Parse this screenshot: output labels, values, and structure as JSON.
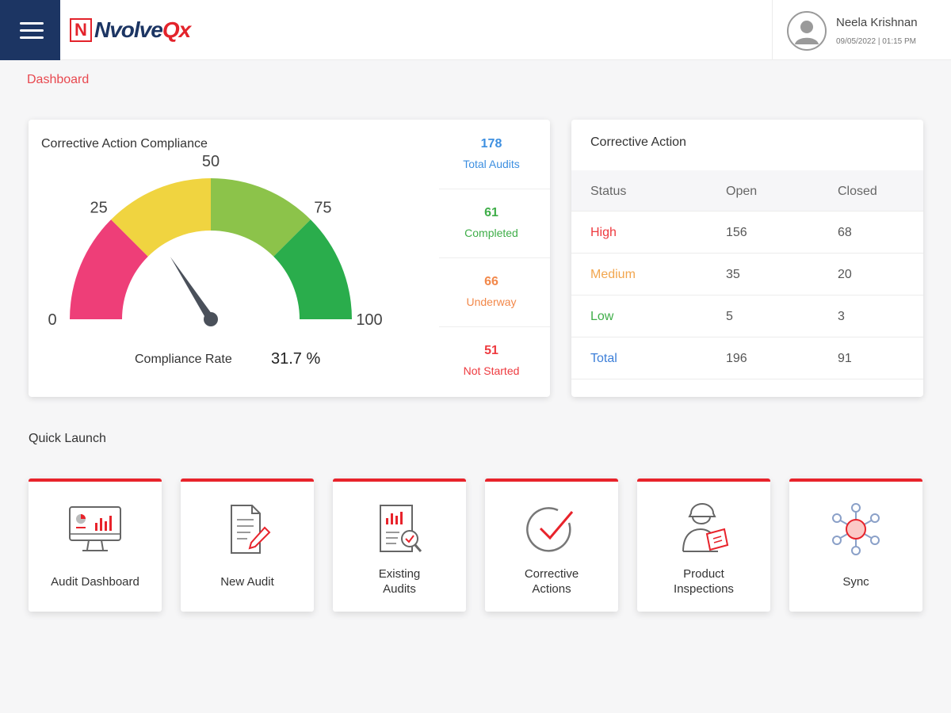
{
  "header": {
    "logo_badge": "N",
    "logo_main": "Nvolve",
    "logo_accent": "Qx",
    "user_name": "Neela Krishnan",
    "user_datetime": "09/05/2022 | 01:15 PM"
  },
  "breadcrumb": "Dashboard",
  "compliance": {
    "title": "Corrective Action Compliance",
    "gauge": {
      "ticks": [
        "0",
        "25",
        "50",
        "75",
        "100"
      ],
      "value": 31.7,
      "min": 0,
      "max": 100,
      "band_colors": [
        "#ee3e78",
        "#f0d440",
        "#8cc34a",
        "#2aad4c"
      ]
    },
    "rate_label": "Compliance Rate",
    "rate_value": "31.7 %",
    "stats": [
      {
        "value": "178",
        "label": "Total Audits",
        "color": "#3d8fe0"
      },
      {
        "value": "61",
        "label": "Completed",
        "color": "#3fae49"
      },
      {
        "value": "66",
        "label": "Underway",
        "color": "#f2884a"
      },
      {
        "value": "51",
        "label": "Not Started",
        "color": "#ee3a3f"
      }
    ]
  },
  "corrective_action": {
    "title": "Corrective Action",
    "columns": [
      "Status",
      "Open",
      "Closed"
    ],
    "rows": [
      {
        "status": "High",
        "open": "156",
        "closed": "68",
        "color": "#ee3a3f"
      },
      {
        "status": "Medium",
        "open": "35",
        "closed": "20",
        "color": "#f2a64e"
      },
      {
        "status": "Low",
        "open": "5",
        "closed": "3",
        "color": "#3fae49"
      },
      {
        "status": "Total",
        "open": "196",
        "closed": "91",
        "color": "#3d7fd8"
      }
    ]
  },
  "quick_launch": {
    "title": "Quick Launch",
    "tiles": [
      {
        "label": "Audit Dashboard",
        "icon": "monitor-chart-icon"
      },
      {
        "label": "New Audit",
        "icon": "document-edit-icon"
      },
      {
        "label": "Existing\nAudits",
        "icon": "report-search-icon"
      },
      {
        "label": "Corrective\nActions",
        "icon": "check-circle-icon"
      },
      {
        "label": "Product\nInspections",
        "icon": "inspector-icon"
      },
      {
        "label": "Sync",
        "icon": "network-sync-icon"
      }
    ]
  }
}
